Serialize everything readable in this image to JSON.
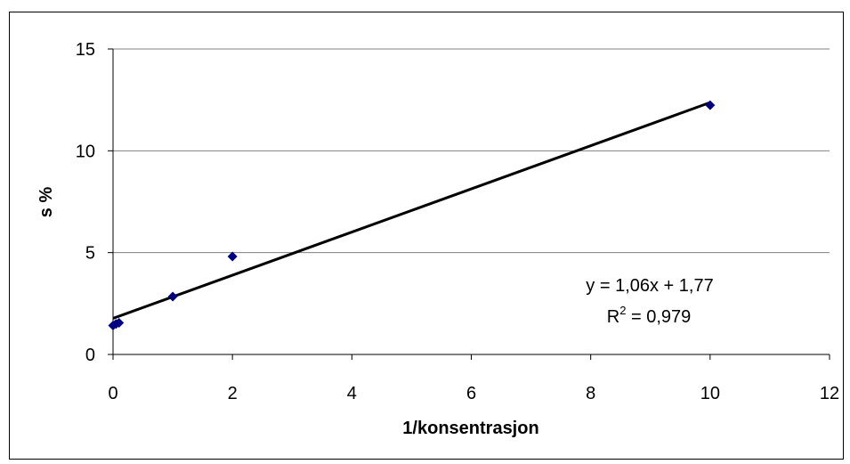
{
  "chart_data": {
    "type": "scatter",
    "x_label": "1/konsentrasjon",
    "y_label": "s %",
    "series": [
      {
        "color": "#000080",
        "x": [
          0,
          0.05,
          0.1,
          1,
          2,
          10
        ],
        "values": [
          1.42,
          1.5,
          1.55,
          2.84,
          4.81,
          12.24
        ]
      }
    ],
    "trendline": {
      "slope": 1.06,
      "intercept": 1.77,
      "x_range": [
        0,
        10
      ],
      "color": "#000000"
    },
    "annotations": {
      "equation": "y = 1,06x + 1,77",
      "r_squared": {
        "base": "R",
        "sup": "2",
        "rest": " = 0,979"
      }
    },
    "xlim": [
      0,
      12
    ],
    "xticks": [
      0,
      2,
      4,
      6,
      8,
      10,
      12
    ],
    "ylim": [
      0,
      15
    ],
    "yticks": [
      0,
      5,
      10,
      15
    ],
    "grid": true
  }
}
